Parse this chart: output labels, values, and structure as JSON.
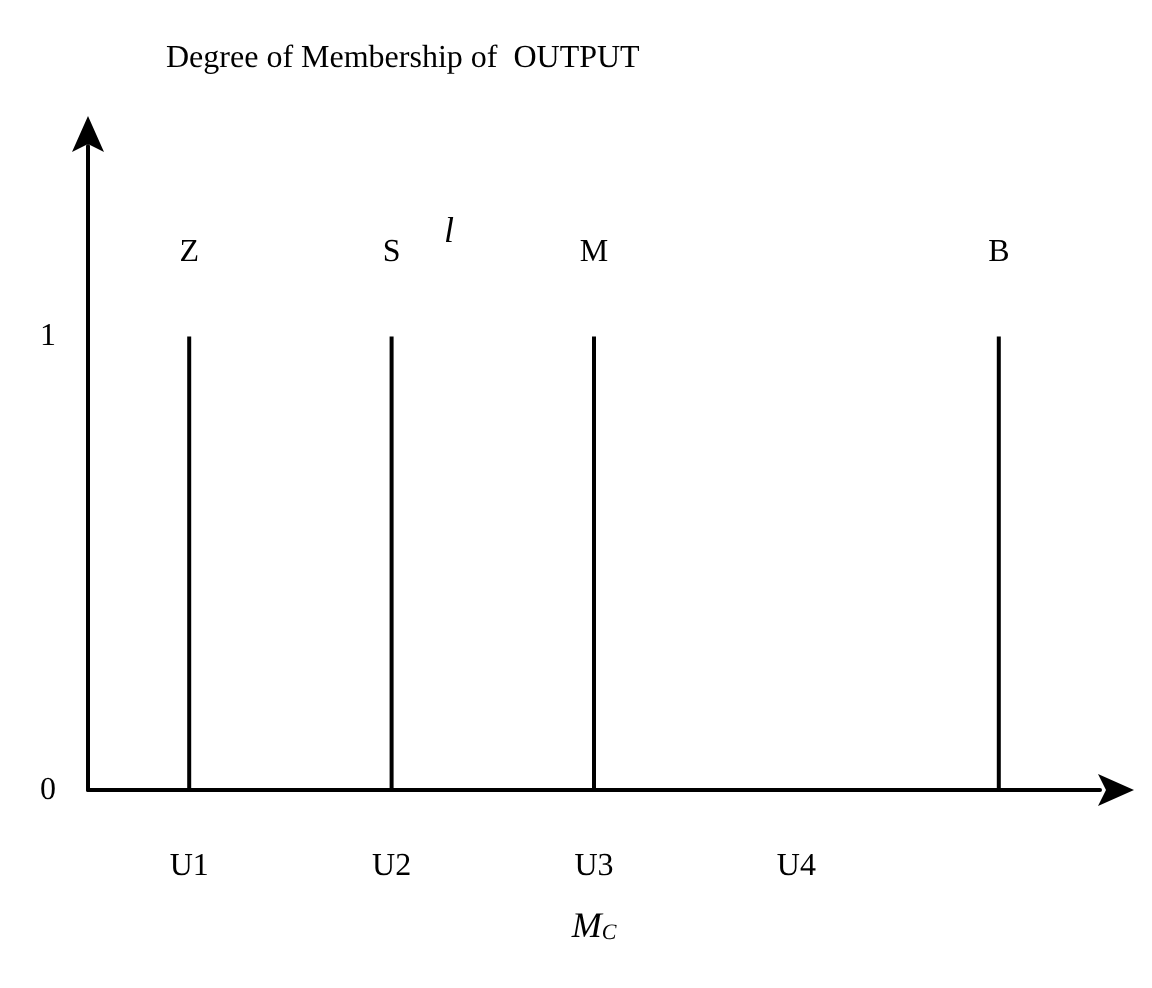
{
  "chart_data": {
    "type": "bar",
    "ylabel": "Degree of Membership of  OUTPUT",
    "xlabel": "M$_{C}$",
    "categories": [
      "U1",
      "U2",
      "U3",
      "U4",
      null
    ],
    "values": [
      1,
      1,
      1,
      null,
      1
    ],
    "color": "#000000",
    "value_labels": [
      "Z",
      "S",
      "M",
      null,
      "B"
    ],
    "ylim": [
      0,
      1.42
    ],
    "yticks": [
      0,
      1
    ],
    "grid": false,
    "annotations": [
      "l"
    ]
  }
}
